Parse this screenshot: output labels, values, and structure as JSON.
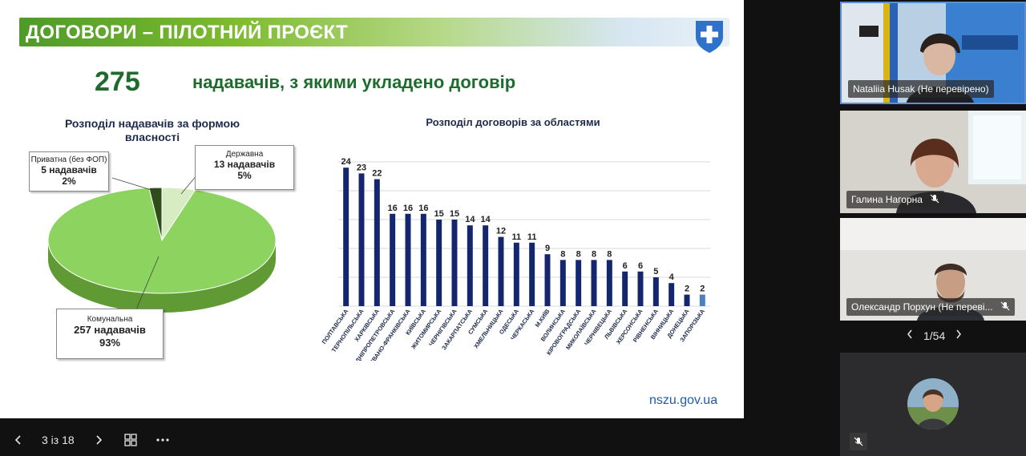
{
  "slide": {
    "banner_title": "ДОГОВОРИ – ПІЛОТНИЙ ПРОЄКТ",
    "headline_number": "275",
    "headline_text": "надавачів, з якими укладено договір",
    "pie_title": "Розподіл надавачів за формою власності",
    "bar_title": "Розподіл договорів за областями",
    "site_url": "nszu.gov.ua",
    "callouts": {
      "private": {
        "name": "Приватна (без ФОП)",
        "count": "5 надавачів",
        "pct": "2%"
      },
      "state": {
        "name": "Державна",
        "count": "13 надавачів",
        "pct": "5%"
      },
      "communal": {
        "name": "Комунальна",
        "count": "257 надавачів",
        "pct": "93%"
      }
    },
    "colors": {
      "banner_green": "#4e9a2a",
      "headline_green": "#1f6b2e",
      "bar_navy": "#13266e",
      "bar_light": "#4a7fc4",
      "pie_green": "#8dd35f"
    }
  },
  "chart_data": [
    {
      "type": "pie",
      "title": "Розподіл надавачів за формою власності",
      "categories": [
        "Комунальна",
        "Державна",
        "Приватна (без ФОП)"
      ],
      "values": [
        257,
        13,
        5
      ],
      "percent": [
        93,
        5,
        2
      ]
    },
    {
      "type": "bar",
      "title": "Розподіл договорів за областями",
      "categories": [
        "ПОЛТАВСЬКА",
        "ТЕРНОПІЛЬСЬКА",
        "ХАРКІВСЬКА",
        "ДНІПРОПЕТРОВСЬКА",
        "ІВАНО-ФРАНКІВСЬКА",
        "КИЇВСЬКА",
        "ЖИТОМИРСЬКА",
        "ЧЕРНІГІВСЬКА",
        "ЗАКАРПАТСЬКА",
        "СУМСЬКА",
        "ХМЕЛЬНИЦЬКА",
        "ОДЕСЬКА",
        "ЧЕРКАСЬКА",
        "М.КИЇВ",
        "ВОЛИНСЬКА",
        "КІРОВОГРАДСЬКА",
        "МИКОЛАЇВСЬКА",
        "ЧЕРНІВЕЦЬКА",
        "ЛЬВІВСЬКА",
        "ХЕРСОНСЬКА",
        "РІВНЕНСЬКА",
        "ВІННИЦЬКА",
        "ДОНЕЦЬКА",
        "ЗАПОРІЗЬКА"
      ],
      "values": [
        24,
        23,
        22,
        16,
        16,
        16,
        15,
        15,
        14,
        14,
        12,
        11,
        11,
        9,
        8,
        8,
        8,
        8,
        6,
        6,
        5,
        4,
        2,
        2
      ],
      "ylim": [
        0,
        25
      ],
      "grid": true
    }
  ],
  "bottom_bar": {
    "counter": "3 із 18",
    "prev_icon": "chevron-left-icon",
    "next_icon": "chevron-right-icon",
    "grid_icon": "grid-view-icon",
    "more_icon": "more-options-icon"
  },
  "participants": [
    {
      "name": "Nataliia Husak (Не перевірено)",
      "muted": false
    },
    {
      "name": "Галина Нагорна",
      "muted": true
    },
    {
      "name": "Олександр Порхун (Не переві...",
      "muted": true
    },
    {
      "name": "",
      "muted": true
    }
  ],
  "pager": {
    "text": "1/54"
  }
}
